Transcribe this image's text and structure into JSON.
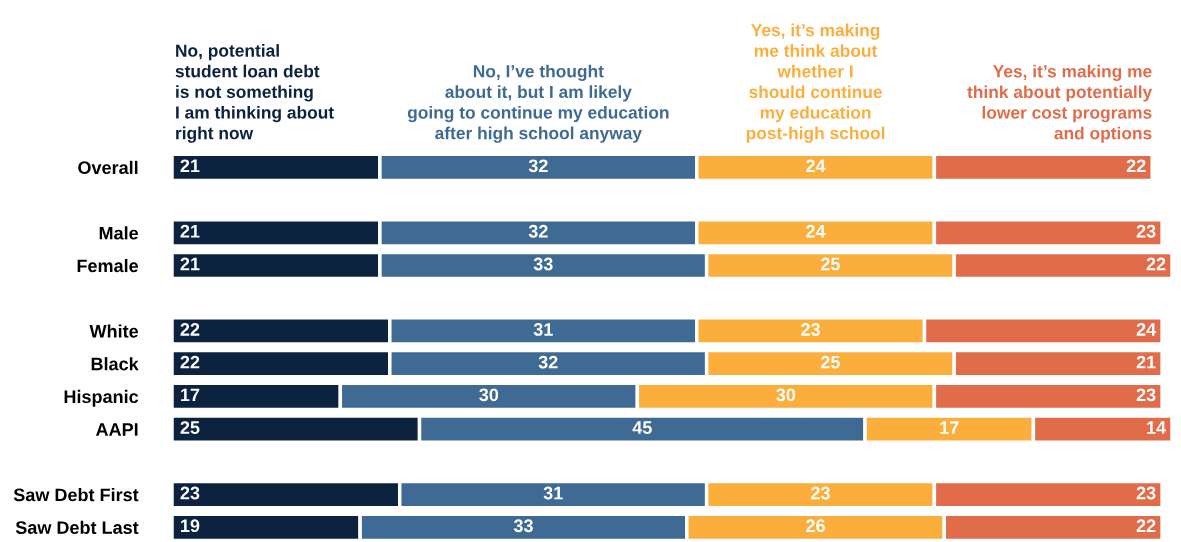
{
  "chart_data": {
    "type": "bar",
    "orientation": "horizontal",
    "stacked": true,
    "data_labels": true,
    "grid": false,
    "legend": false,
    "tick_labels": "y",
    "categories": [
      "Overall",
      null,
      "Male",
      "Female",
      null,
      "White",
      "Black",
      "Hispanic",
      "AAPI",
      null,
      "Saw Debt First",
      "Saw Debt Last"
    ],
    "series": [
      {
        "name": "No, potential\nstudent loan debt\nis not something\nI am thinking about\nright now",
        "color": "#0c2340",
        "values": [
          21,
          null,
          21,
          21,
          null,
          22,
          22,
          17,
          25,
          null,
          23,
          19
        ]
      },
      {
        "name": "No, I’ve thought\nabout it, but I am likely\ngoing to continue my education\nafter high school anyway",
        "color": "#3f6a94",
        "values": [
          32,
          null,
          32,
          33,
          null,
          31,
          32,
          30,
          45,
          null,
          31,
          33
        ]
      },
      {
        "name": "Yes, it’s making\nme think about\nwhether I\nshould continue\nmy education\npost-high school",
        "color": "#fbae3c",
        "values": [
          24,
          null,
          24,
          25,
          null,
          23,
          25,
          30,
          17,
          null,
          23,
          26
        ]
      },
      {
        "name": "Yes, it’s making me\nthink about potentially\nlower cost programs\nand options",
        "color": "#e06c4a",
        "values": [
          22,
          null,
          23,
          22,
          null,
          24,
          21,
          23,
          14,
          null,
          23,
          22
        ]
      }
    ]
  }
}
